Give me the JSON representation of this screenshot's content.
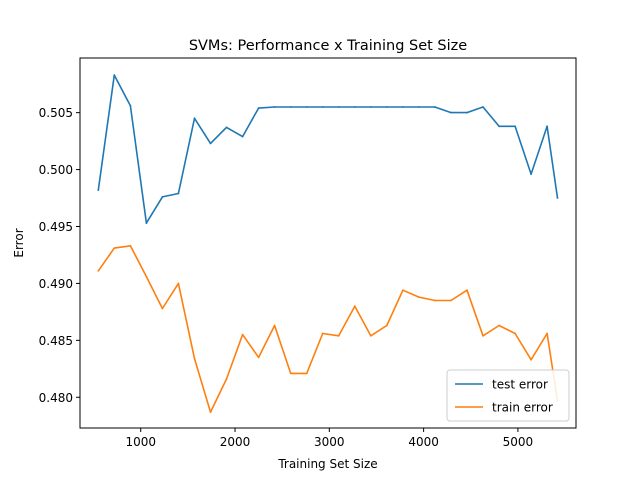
{
  "chart_data": {
    "type": "line",
    "title": "SVMs: Performance x Training Set Size",
    "xlabel": "Training Set Size",
    "ylabel": "Error",
    "xlim": [
      356,
      5616
    ],
    "ylim": [
      0.4773,
      0.5098
    ],
    "xticks": [
      {
        "value": 1000,
        "label": "1000"
      },
      {
        "value": 2000,
        "label": "2000"
      },
      {
        "value": 3000,
        "label": "3000"
      },
      {
        "value": 4000,
        "label": "4000"
      },
      {
        "value": 5000,
        "label": "5000"
      }
    ],
    "yticks": [
      {
        "value": 0.48,
        "label": "0.480"
      },
      {
        "value": 0.485,
        "label": "0.485"
      },
      {
        "value": 0.49,
        "label": "0.490"
      },
      {
        "value": 0.495,
        "label": "0.495"
      },
      {
        "value": 0.5,
        "label": "0.500"
      },
      {
        "value": 0.505,
        "label": "0.505"
      }
    ],
    "grid": false,
    "legend_position": "lower right",
    "x": [
      550,
      720,
      890,
      1060,
      1230,
      1400,
      1570,
      1740,
      1910,
      2080,
      2250,
      2420,
      2590,
      2760,
      2930,
      3100,
      3270,
      3440,
      3610,
      3780,
      3950,
      4120,
      4290,
      4460,
      4630,
      4800,
      4970,
      5140,
      5310,
      5420
    ],
    "series": [
      {
        "name": "test error",
        "color": "#1f77b4",
        "values": [
          0.4982,
          0.5083,
          0.5056,
          0.4953,
          0.4976,
          0.4979,
          0.5045,
          0.5023,
          0.5037,
          0.5029,
          0.5054,
          0.5055,
          0.5055,
          0.5055,
          0.5055,
          0.5055,
          0.5055,
          0.5055,
          0.5055,
          0.5055,
          0.5055,
          0.5055,
          0.505,
          0.505,
          0.5055,
          0.5038,
          0.5038,
          0.4996,
          0.5038,
          0.4975
        ]
      },
      {
        "name": "train error",
        "color": "#ff7f0e",
        "values": [
          0.4911,
          0.4931,
          0.4933,
          0.4906,
          0.4878,
          0.49,
          0.4834,
          0.4787,
          0.4816,
          0.4855,
          0.4835,
          0.4863,
          0.4821,
          0.4821,
          0.4856,
          0.4854,
          0.488,
          0.4854,
          0.4863,
          0.4894,
          0.4888,
          0.4885,
          0.4885,
          0.4894,
          0.4854,
          0.4863,
          0.4856,
          0.4833,
          0.4856,
          0.4797
        ]
      }
    ]
  }
}
